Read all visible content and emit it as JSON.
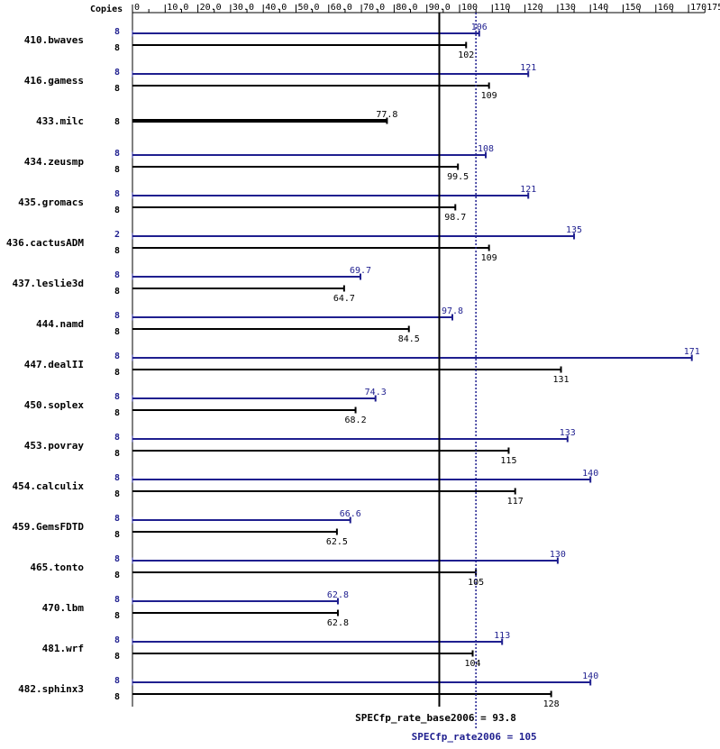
{
  "chart_data": {
    "type": "bar",
    "orientation": "horizontal",
    "title": "",
    "xlabel": "",
    "ylabel": "",
    "copies_header": "Copies",
    "xlim": [
      0,
      175
    ],
    "ticks": [
      0,
      10,
      20,
      30,
      40,
      50,
      60,
      70,
      80,
      90,
      100,
      110,
      120,
      130,
      140,
      150,
      160,
      170,
      175
    ],
    "tick_labels": [
      "0",
      "10.0",
      "20.0",
      "30.0",
      "40.0",
      "50.0",
      "60.0",
      "70.0",
      "80.0",
      "90.0",
      "100",
      "110",
      "120",
      "130",
      "140",
      "150",
      "160",
      "170",
      "175"
    ],
    "colors": {
      "peak": "#1f1f8f",
      "base": "#000000",
      "axis": "#000000"
    },
    "benchmarks": [
      {
        "name": "410.bwaves",
        "peak_copies": "8",
        "peak": 106,
        "peak_label": "106",
        "base_copies": "8",
        "base": 102,
        "base_label": "102"
      },
      {
        "name": "416.gamess",
        "peak_copies": "8",
        "peak": 121,
        "peak_label": "121",
        "base_copies": "8",
        "base": 109,
        "base_label": "109"
      },
      {
        "name": "433.milc",
        "peak_copies": null,
        "peak": null,
        "peak_label": null,
        "base_copies": "8",
        "base": 77.8,
        "base_label": "77.8",
        "single": true
      },
      {
        "name": "434.zeusmp",
        "peak_copies": "8",
        "peak": 108,
        "peak_label": "108",
        "base_copies": "8",
        "base": 99.5,
        "base_label": "99.5"
      },
      {
        "name": "435.gromacs",
        "peak_copies": "8",
        "peak": 121,
        "peak_label": "121",
        "base_copies": "8",
        "base": 98.7,
        "base_label": "98.7"
      },
      {
        "name": "436.cactusADM",
        "peak_copies": "2",
        "peak": 135,
        "peak_label": "135",
        "base_copies": "8",
        "base": 109,
        "base_label": "109"
      },
      {
        "name": "437.leslie3d",
        "peak_copies": "8",
        "peak": 69.7,
        "peak_label": "69.7",
        "base_copies": "8",
        "base": 64.7,
        "base_label": "64.7"
      },
      {
        "name": "444.namd",
        "peak_copies": "8",
        "peak": 97.8,
        "peak_label": "97.8",
        "base_copies": "8",
        "base": 84.5,
        "base_label": "84.5"
      },
      {
        "name": "447.dealII",
        "peak_copies": "8",
        "peak": 171,
        "peak_label": "171",
        "base_copies": "8",
        "base": 131,
        "base_label": "131"
      },
      {
        "name": "450.soplex",
        "peak_copies": "8",
        "peak": 74.3,
        "peak_label": "74.3",
        "base_copies": "8",
        "base": 68.2,
        "base_label": "68.2"
      },
      {
        "name": "453.povray",
        "peak_copies": "8",
        "peak": 133,
        "peak_label": "133",
        "base_copies": "8",
        "base": 115,
        "base_label": "115"
      },
      {
        "name": "454.calculix",
        "peak_copies": "8",
        "peak": 140,
        "peak_label": "140",
        "base_copies": "8",
        "base": 117,
        "base_label": "117"
      },
      {
        "name": "459.GemsFDTD",
        "peak_copies": "8",
        "peak": 66.6,
        "peak_label": "66.6",
        "base_copies": "8",
        "base": 62.5,
        "base_label": "62.5"
      },
      {
        "name": "465.tonto",
        "peak_copies": "8",
        "peak": 130,
        "peak_label": "130",
        "base_copies": "8",
        "base": 105,
        "base_label": "105"
      },
      {
        "name": "470.lbm",
        "peak_copies": "8",
        "peak": 62.8,
        "peak_label": "62.8",
        "base_copies": "8",
        "base": 62.8,
        "base_label": "62.8"
      },
      {
        "name": "481.wrf",
        "peak_copies": "8",
        "peak": 113,
        "peak_label": "113",
        "base_copies": "8",
        "base": 104,
        "base_label": "104"
      },
      {
        "name": "482.sphinx3",
        "peak_copies": "8",
        "peak": 140,
        "peak_label": "140",
        "base_copies": "8",
        "base": 128,
        "base_label": "128"
      }
    ],
    "summary": {
      "base_value": 93.8,
      "base_label": "SPECfp_rate_base2006 = 93.8",
      "peak_value": 105,
      "peak_label": "SPECfp_rate2006 = 105"
    }
  }
}
